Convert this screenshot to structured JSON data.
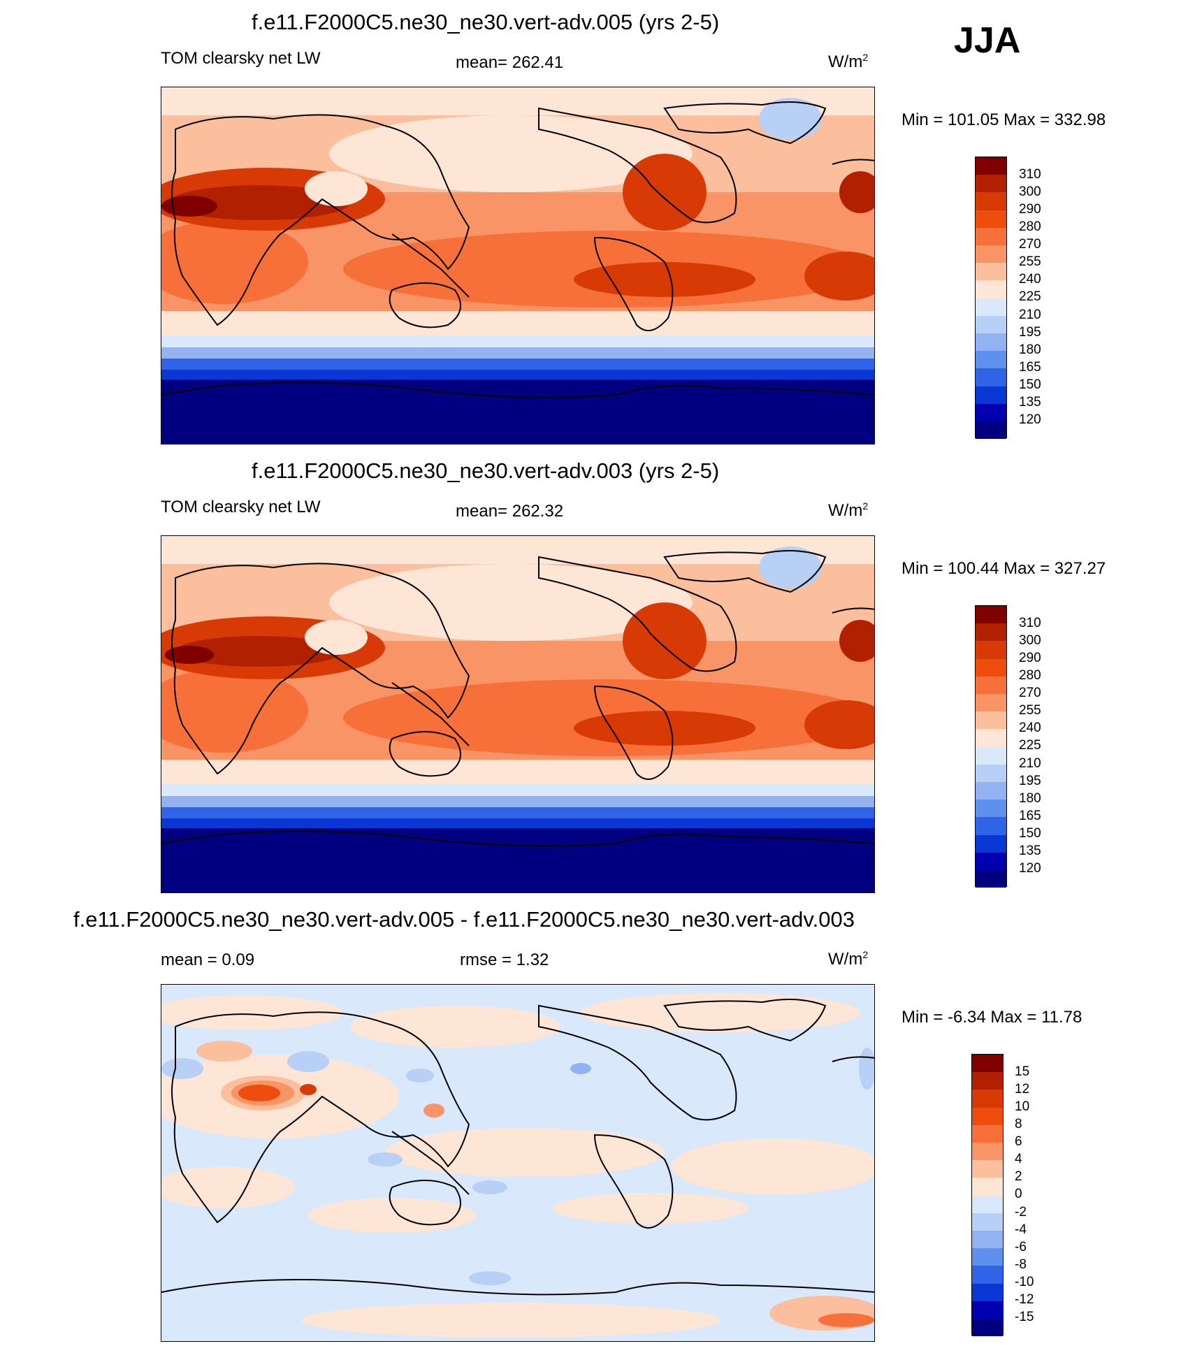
{
  "season": "JJA",
  "panels": [
    {
      "title": "f.e11.F2000C5.ne30_ne30.vert-adv.005 (yrs 2-5)",
      "left_label": "TOM clearsky net LW",
      "center_label": "mean= 262.41",
      "units": "W/m",
      "units_sup": "2",
      "minmax": "Min = 101.05 Max = 332.98",
      "colorbar": {
        "labels": [
          "310",
          "300",
          "290",
          "280",
          "270",
          "255",
          "240",
          "225",
          "210",
          "195",
          "180",
          "165",
          "150",
          "135",
          "120"
        ],
        "colors": [
          "#800000",
          "#b22002",
          "#d83a06",
          "#ef4d0e",
          "#f7703a",
          "#f99467",
          "#fbbf9e",
          "#fde6d6",
          "#dae8fb",
          "#b8cff6",
          "#92b2f2",
          "#6090ee",
          "#2f63e8",
          "#0a36d4",
          "#0000b0",
          "#000080"
        ]
      }
    },
    {
      "title": "f.e11.F2000C5.ne30_ne30.vert-adv.003 (yrs 2-5)",
      "left_label": "TOM clearsky net LW",
      "center_label": "mean= 262.32",
      "units": "W/m",
      "units_sup": "2",
      "minmax": "Min = 100.44 Max = 327.27",
      "colorbar": {
        "labels": [
          "310",
          "300",
          "290",
          "280",
          "270",
          "255",
          "240",
          "225",
          "210",
          "195",
          "180",
          "165",
          "150",
          "135",
          "120"
        ],
        "colors": [
          "#800000",
          "#b22002",
          "#d83a06",
          "#ef4d0e",
          "#f7703a",
          "#f99467",
          "#fbbf9e",
          "#fde6d6",
          "#dae8fb",
          "#b8cff6",
          "#92b2f2",
          "#6090ee",
          "#2f63e8",
          "#0a36d4",
          "#0000b0",
          "#000080"
        ]
      }
    },
    {
      "title": "f.e11.F2000C5.ne30_ne30.vert-adv.005 - f.e11.F2000C5.ne30_ne30.vert-adv.003",
      "left_label": "mean =   0.09",
      "center_label": "rmse =   1.32",
      "units": "W/m",
      "units_sup": "2",
      "minmax": "Min =  -6.34 Max =  11.78",
      "colorbar": {
        "labels": [
          "15",
          "12",
          "10",
          "8",
          "6",
          "4",
          "2",
          "0",
          "-2",
          "-4",
          "-6",
          "-8",
          "-10",
          "-12",
          "-15"
        ],
        "colors": [
          "#800000",
          "#b22002",
          "#d83a06",
          "#ef4d0e",
          "#f7703a",
          "#f99467",
          "#fbbf9e",
          "#fde6d6",
          "#dae8fb",
          "#b8cff6",
          "#92b2f2",
          "#6090ee",
          "#2f63e8",
          "#0a36d4",
          "#0000b0",
          "#000080"
        ]
      }
    }
  ]
}
